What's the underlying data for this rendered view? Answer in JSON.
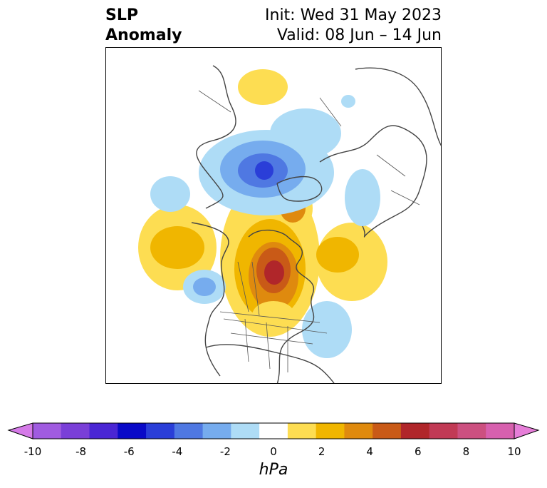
{
  "header": {
    "variable_line1": "SLP",
    "variable_line2": "Anomaly",
    "init_text": "Init: Wed 31 May 2023",
    "valid_text": "Valid: 08 Jun – 14 Jun"
  },
  "colorbar": {
    "units": "hPa",
    "tick_labels": [
      "-10",
      "-8",
      "-6",
      "-4",
      "-2",
      "0",
      "2",
      "4",
      "6",
      "8",
      "10"
    ],
    "colors": [
      "#d57ae8",
      "#a05be0",
      "#7a3fd8",
      "#4a26d4",
      "#0a0ac8",
      "#2a3ed8",
      "#4f78e2",
      "#76acee",
      "#aedcf6",
      "#ffffff",
      "#fddd52",
      "#f0b600",
      "#df8a0e",
      "#c95a17",
      "#b0262a",
      "#c13a55",
      "#cc5080",
      "#d760ae",
      "#e67ed8"
    ]
  }
}
